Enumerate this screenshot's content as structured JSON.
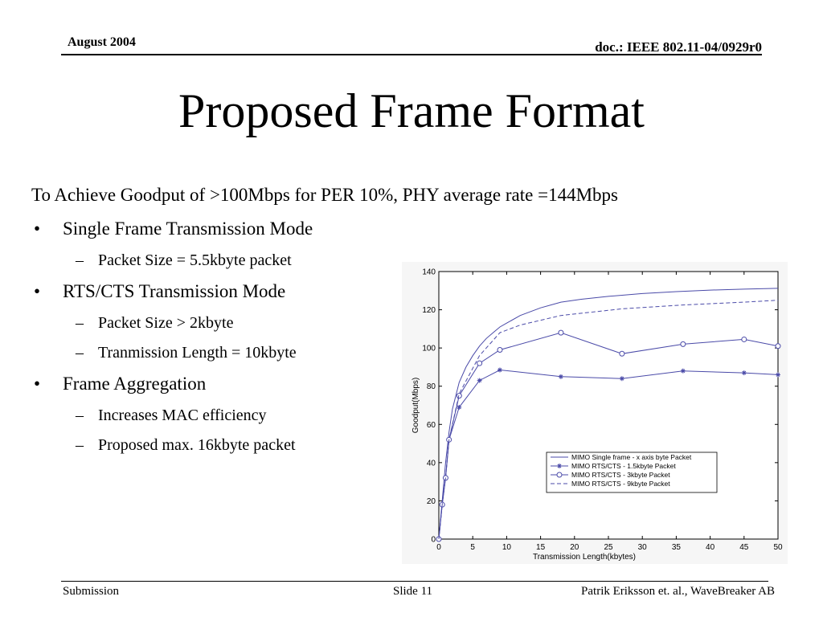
{
  "header": {
    "date": "August 2004",
    "doc_id": "doc.: IEEE 802.11-04/0929r0"
  },
  "title": "Proposed Frame Format",
  "intro": "To Achieve Goodput of >100Mbps for PER 10%, PHY average rate =144Mbps",
  "bullets": [
    {
      "text": "Single Frame Transmission Mode",
      "sub": [
        "Packet Size = 5.5kbyte packet"
      ]
    },
    {
      "text": "RTS/CTS Transmission Mode",
      "sub": [
        "Packet Size > 2kbyte",
        "Tranmission Length = 10kbyte"
      ]
    },
    {
      "text": "Frame Aggregation",
      "sub": [
        "Increases MAC efficiency",
        "Proposed max. 16kbyte packet"
      ]
    }
  ],
  "bullet_glyph": "•",
  "dash_glyph": "–",
  "footer": {
    "left": "Submission",
    "center": "Slide 11",
    "right": "Patrik Eriksson et. al., WaveBreaker AB"
  },
  "chart_data": {
    "type": "line",
    "title": "",
    "xlabel": "Transmission Length(kbytes)",
    "ylabel": "Goodput(Mbps)",
    "xlim": [
      0,
      50
    ],
    "ylim": [
      0,
      140
    ],
    "xticks": [
      "0",
      "5",
      "10",
      "15",
      "20",
      "25",
      "30",
      "35",
      "40",
      "45",
      "50"
    ],
    "yticks": [
      "0",
      "20",
      "40",
      "60",
      "80",
      "100",
      "120",
      "140"
    ],
    "legend_position": "lower-right",
    "line_color": "#4a4aa8",
    "series": [
      {
        "name": "MIMO Single frame - x axis byte Packet",
        "style": "solid",
        "marker": "none",
        "x": [
          0,
          0.5,
          1,
          1.5,
          2,
          3,
          4,
          5,
          6,
          7,
          8,
          9,
          10,
          12,
          15,
          18,
          21,
          25,
          30,
          35,
          40,
          45,
          50
        ],
        "y": [
          0,
          20,
          40,
          56,
          68,
          82,
          90,
          96,
          101,
          105,
          108,
          111,
          113,
          117,
          121,
          124,
          125.5,
          127,
          128.5,
          129.5,
          130.3,
          130.8,
          131.2
        ]
      },
      {
        "name": "MIMO RTS/CTS - 1.5kbyte Packet",
        "style": "solid",
        "marker": "star",
        "x": [
          0,
          0.5,
          1,
          1.5,
          3,
          6,
          9,
          18,
          27,
          36,
          45,
          50
        ],
        "y": [
          0,
          18,
          32,
          52,
          69,
          83,
          88.5,
          85,
          84,
          88,
          87,
          86
        ]
      },
      {
        "name": "MIMO RTS/CTS - 3kbyte Packet",
        "style": "solid",
        "marker": "circle",
        "x": [
          0,
          0.5,
          1,
          1.5,
          3,
          6,
          9,
          18,
          27,
          36,
          45,
          50
        ],
        "y": [
          0,
          18,
          32,
          52,
          75,
          92,
          99,
          108,
          97,
          102,
          104.5,
          101
        ]
      },
      {
        "name": "MIMO RTS/CTS - 9kbyte Packet",
        "style": "dashed",
        "marker": "none",
        "x": [
          0,
          0.5,
          1,
          1.5,
          3,
          6,
          9,
          12,
          18,
          27,
          36,
          45,
          50
        ],
        "y": [
          0,
          18,
          32,
          52,
          76,
          96,
          108,
          112,
          117,
          120.5,
          122.5,
          124,
          125
        ]
      }
    ]
  }
}
